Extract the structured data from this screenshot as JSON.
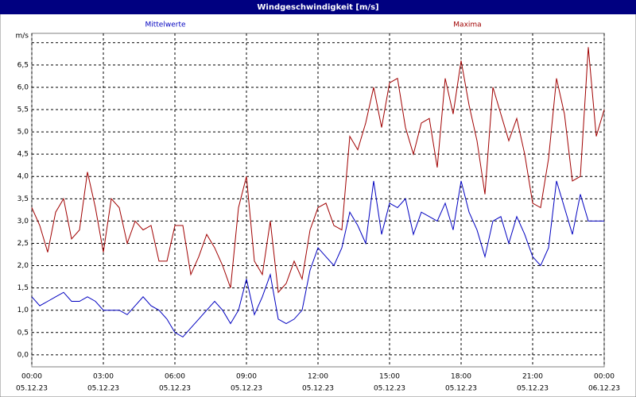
{
  "chart_data": {
    "type": "line",
    "title": "Windgeschwindigkeit [m/s]",
    "x": [
      0,
      20,
      40,
      60,
      80,
      100,
      120,
      140,
      160,
      180,
      200,
      220,
      240,
      260,
      280,
      300,
      320,
      340,
      360,
      380,
      400,
      420,
      440,
      460,
      480,
      500,
      520,
      540,
      560,
      580,
      600,
      620,
      640,
      660,
      680,
      700,
      720,
      740,
      760,
      780,
      800,
      820,
      840,
      860,
      880,
      900,
      920,
      940,
      960,
      980,
      1000,
      1020,
      1040,
      1060,
      1080,
      1100,
      1120,
      1140,
      1160,
      1180,
      1200,
      1220,
      1240,
      1260,
      1280,
      1300,
      1320,
      1340,
      1360,
      1380,
      1400,
      1420,
      1440
    ],
    "series": [
      {
        "name": "Mittelwerte",
        "color": "#0000c0",
        "values": [
          1.3,
          1.1,
          1.2,
          1.3,
          1.4,
          1.2,
          1.2,
          1.3,
          1.2,
          1.0,
          1.0,
          1.0,
          0.9,
          1.1,
          1.3,
          1.1,
          1.0,
          0.8,
          0.5,
          0.4,
          0.6,
          0.8,
          1.0,
          1.2,
          1.0,
          0.7,
          1.0,
          1.7,
          0.9,
          1.3,
          1.8,
          0.8,
          0.7,
          0.8,
          1.0,
          1.9,
          2.4,
          2.2,
          2.0,
          2.4,
          3.2,
          2.9,
          2.5,
          3.9,
          2.7,
          3.4,
          3.3,
          3.5,
          2.7,
          3.2,
          3.1,
          3.0,
          3.4,
          2.8,
          3.9,
          3.2,
          2.8,
          2.2,
          3.0,
          3.1,
          2.5,
          3.1,
          2.7,
          2.2,
          2.0,
          2.4,
          3.9,
          3.3,
          2.7,
          3.6,
          3.0,
          3.0,
          3.0
        ]
      },
      {
        "name": "Maxima",
        "color": "#a00000",
        "values": [
          3.3,
          2.9,
          2.3,
          3.2,
          3.5,
          2.6,
          2.8,
          4.1,
          3.3,
          2.3,
          3.5,
          3.3,
          2.5,
          3.0,
          2.8,
          2.9,
          2.1,
          2.1,
          2.9,
          2.9,
          1.8,
          2.2,
          2.7,
          2.4,
          2.0,
          1.5,
          3.3,
          4.0,
          2.1,
          1.8,
          3.0,
          1.4,
          1.6,
          2.1,
          1.7,
          2.8,
          3.3,
          3.4,
          2.9,
          2.8,
          4.9,
          4.6,
          5.2,
          6.0,
          5.1,
          6.1,
          6.2,
          5.1,
          4.5,
          5.2,
          5.3,
          4.2,
          6.2,
          5.4,
          6.6,
          5.6,
          4.8,
          3.6,
          6.0,
          5.4,
          4.8,
          5.3,
          4.5,
          3.4,
          3.3,
          4.4,
          6.2,
          5.4,
          3.9,
          4.0,
          6.9,
          4.9,
          5.5
        ]
      }
    ],
    "xlim": [
      0,
      1440
    ],
    "xticks": [
      {
        "value": 0,
        "label": "00:00"
      },
      {
        "value": 180,
        "label": "03:00"
      },
      {
        "value": 360,
        "label": "06:00"
      },
      {
        "value": 540,
        "label": "09:00"
      },
      {
        "value": 720,
        "label": "12:00"
      },
      {
        "value": 900,
        "label": "15:00"
      },
      {
        "value": 1080,
        "label": "18:00"
      },
      {
        "value": 1260,
        "label": "21:00"
      },
      {
        "value": 1440,
        "label": "00:00"
      }
    ],
    "xtick_dates": [
      "05.12.23",
      "05.12.23",
      "05.12.23",
      "05.12.23",
      "05.12.23",
      "05.12.23",
      "05.12.23",
      "05.12.23",
      "06.12.23"
    ],
    "ylim": [
      -0.27,
      7.21
    ],
    "yticks": [
      {
        "value": 0,
        "label": "0,0"
      },
      {
        "value": 0.5,
        "label": "0,5"
      },
      {
        "value": 1,
        "label": "1,0"
      },
      {
        "value": 1.5,
        "label": "1,5"
      },
      {
        "value": 2,
        "label": "2,0"
      },
      {
        "value": 2.5,
        "label": "2,5"
      },
      {
        "value": 3,
        "label": "3,0"
      },
      {
        "value": 3.5,
        "label": "3,5"
      },
      {
        "value": 4,
        "label": "4,0"
      },
      {
        "value": 4.5,
        "label": "4,5"
      },
      {
        "value": 5,
        "label": "5,0"
      },
      {
        "value": 5.5,
        "label": "5,5"
      },
      {
        "value": 6,
        "label": "6,0"
      },
      {
        "value": 6.5,
        "label": "6,5"
      },
      {
        "value": 7,
        "label": "m/s"
      }
    ],
    "grid": true
  }
}
